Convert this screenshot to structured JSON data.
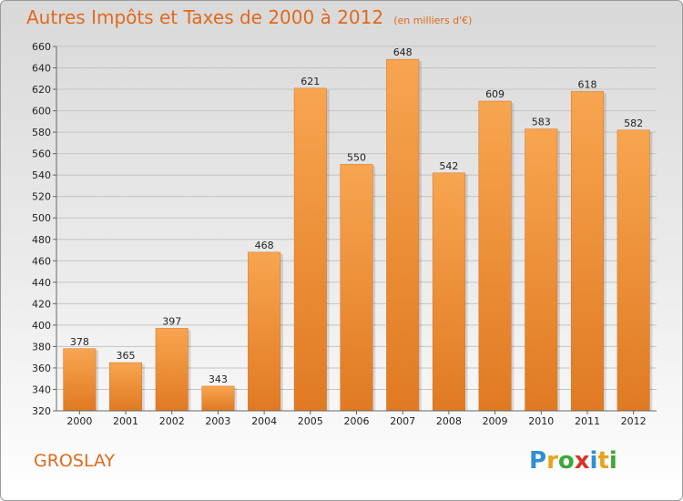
{
  "title": "Autres Impôts et Taxes de 2000 à 2012",
  "unit": "(en milliers d'€)",
  "city": "GROSLAY",
  "logo": "Proxiti",
  "colors": {
    "bar": "#f28a2e",
    "bar_light": "#f8a458",
    "bar_dark": "#e07820",
    "title": "#e06a1d"
  },
  "chart_data": {
    "type": "bar",
    "categories": [
      "2000",
      "2001",
      "2002",
      "2003",
      "2004",
      "2005",
      "2006",
      "2007",
      "2008",
      "2009",
      "2010",
      "2011",
      "2012"
    ],
    "values": [
      378,
      365,
      397,
      343,
      468,
      621,
      550,
      648,
      542,
      609,
      583,
      618,
      582
    ],
    "ylim": [
      320,
      660
    ],
    "yticks": [
      320,
      340,
      360,
      380,
      400,
      420,
      440,
      460,
      480,
      500,
      520,
      540,
      560,
      580,
      600,
      620,
      640,
      660
    ],
    "grid": true
  }
}
